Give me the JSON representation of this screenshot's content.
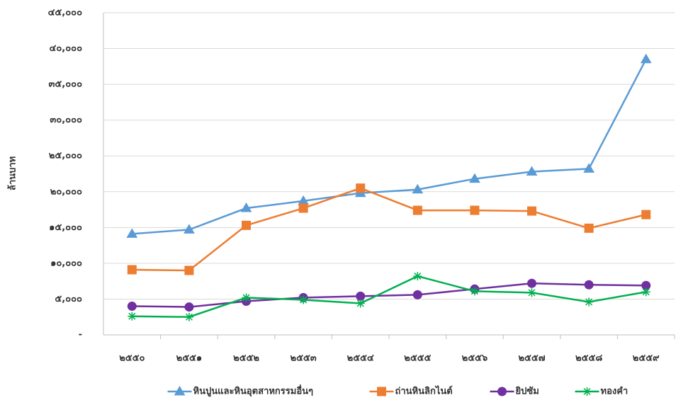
{
  "chart_data": {
    "type": "line",
    "y_label": "ล้านบาท",
    "categories": [
      "๒๕๕๐",
      "๒๕๕๑",
      "๒๕๕๒",
      "๒๕๕๓",
      "๒๕๕๔",
      "๒๕๕๕",
      "๒๕๕๖",
      "๒๕๕๗",
      "๒๕๕๘",
      "๒๕๕๙"
    ],
    "series": [
      {
        "name": "หินปูนและหินอุตสาหกรรมอื่นๆ",
        "color": "#5b9bd5",
        "marker": "triangle",
        "values": [
          14100,
          14700,
          17700,
          18700,
          19800,
          20300,
          21800,
          22800,
          23200,
          38500
        ]
      },
      {
        "name": "ถ่านหินลิกไนต์",
        "color": "#ed7d31",
        "marker": "square",
        "values": [
          9100,
          9000,
          15300,
          17700,
          20500,
          17400,
          17400,
          17300,
          14900,
          16800
        ]
      },
      {
        "name": "ยิปซัม",
        "color": "#7030a0",
        "marker": "circle",
        "values": [
          4000,
          3900,
          4700,
          5200,
          5400,
          5600,
          6400,
          7200,
          7000,
          6900
        ]
      },
      {
        "name": "ทองคำ",
        "color": "#00b050",
        "marker": "asterisk",
        "values": [
          2600,
          2500,
          5200,
          4900,
          4400,
          8200,
          6100,
          5900,
          4600,
          6000
        ]
      }
    ],
    "ylim": [
      0,
      45000
    ],
    "yticks": [
      {
        "value": 0,
        "label": "-"
      },
      {
        "value": 5000,
        "label": "๕,๐๐๐"
      },
      {
        "value": 10000,
        "label": "๑๐,๐๐๐"
      },
      {
        "value": 15000,
        "label": "๑๕,๐๐๐"
      },
      {
        "value": 20000,
        "label": "๒๐,๐๐๐"
      },
      {
        "value": 25000,
        "label": "๒๕,๐๐๐"
      },
      {
        "value": 30000,
        "label": "๓๐,๐๐๐"
      },
      {
        "value": 35000,
        "label": "๓๕,๐๐๐"
      },
      {
        "value": 40000,
        "label": "๔๐,๐๐๐"
      },
      {
        "value": 45000,
        "label": "๔๕,๐๐๐"
      }
    ],
    "grid": true,
    "legend": "bottom"
  }
}
